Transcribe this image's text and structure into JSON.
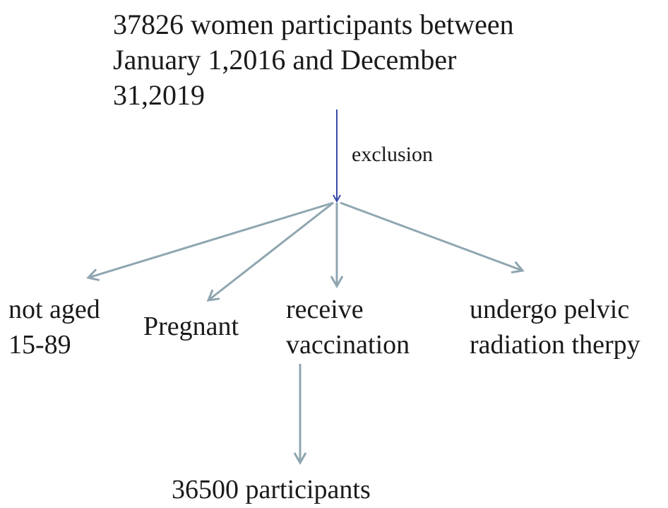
{
  "nodes": [
    {
      "label": [
        "37826 women participants between",
        "January 1,2016 and December",
        "31,2019"
      ]
    },
    {
      "label": [
        "not aged",
        "15-89"
      ]
    },
    {
      "label": [
        "Pregnant"
      ]
    },
    {
      "label": [
        "receive",
        "vaccination"
      ]
    },
    {
      "label": [
        "undergo pelvic",
        "radiation therpy"
      ]
    },
    {
      "label": [
        "36500 participants"
      ]
    }
  ],
  "edges": [
    {
      "label": "exclusion"
    }
  ]
}
